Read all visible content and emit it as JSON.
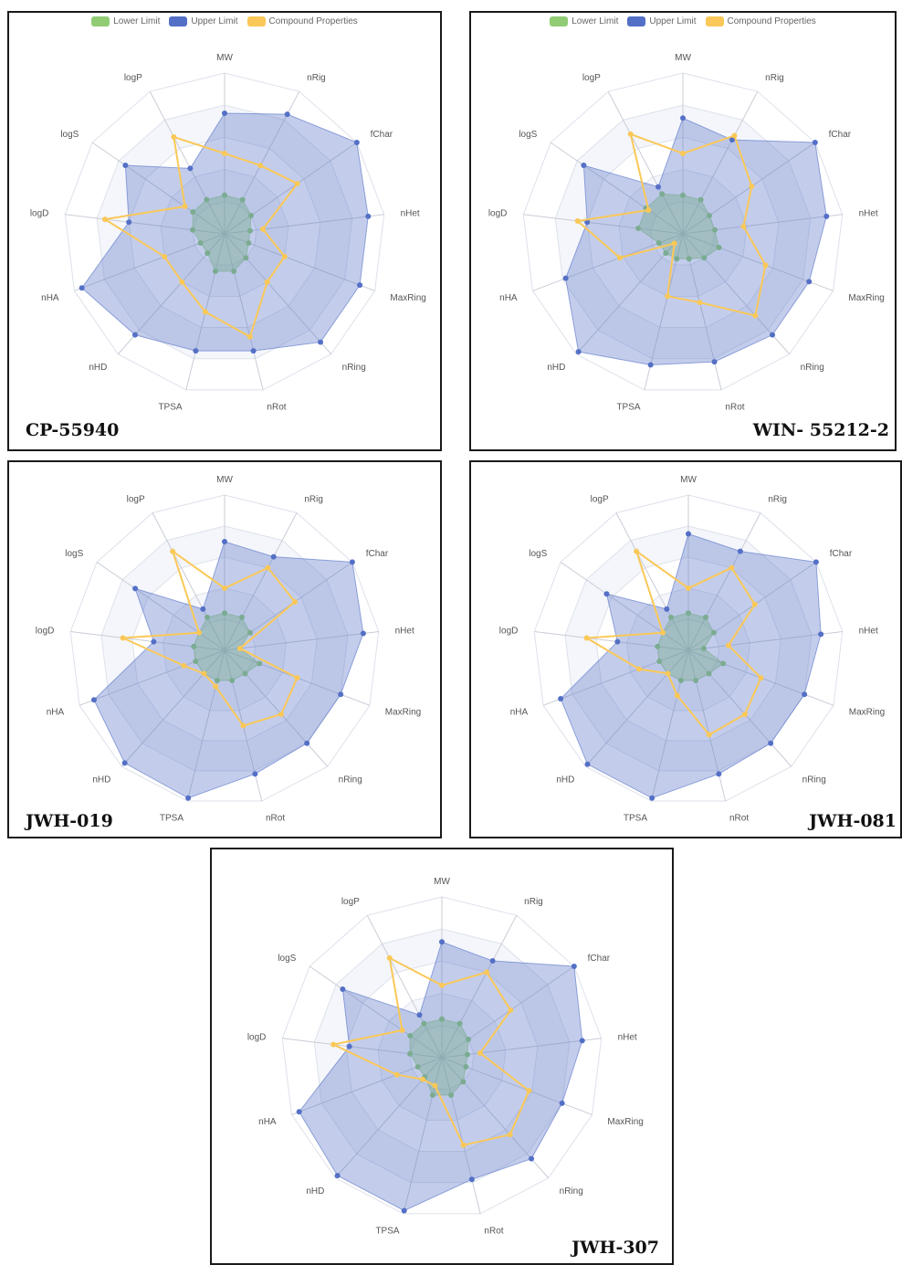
{
  "legend": {
    "items": [
      {
        "label": "Lower Limit",
        "color": "#91cc75"
      },
      {
        "label": "Upper Limit",
        "color": "#5470c6"
      },
      {
        "label": "Compound Properties",
        "color": "#fac858"
      }
    ]
  },
  "axes": [
    "MW",
    "nRig",
    "fChar",
    "nHet",
    "MaxRing",
    "nRing",
    "nRot",
    "TPSA",
    "nHD",
    "nHA",
    "logD",
    "logS",
    "logP"
  ],
  "scale": {
    "max": 1.0,
    "rings": 5
  },
  "chart_data": [
    {
      "type": "radar",
      "name": "CP-55940",
      "categories": [
        "MW",
        "nRig",
        "fChar",
        "nHet",
        "MaxRing",
        "nRing",
        "nRot",
        "TPSA",
        "nHD",
        "nHA",
        "logD",
        "logS",
        "logP"
      ],
      "series": [
        {
          "name": "Lower Limit",
          "values": [
            0.24,
            0.24,
            0.2,
            0.16,
            0.16,
            0.2,
            0.24,
            0.24,
            0.16,
            0.16,
            0.2,
            0.24,
            0.24
          ]
        },
        {
          "name": "Upper Limit",
          "values": [
            0.75,
            0.84,
            1.0,
            0.9,
            0.9,
            0.9,
            0.75,
            0.75,
            0.84,
            0.95,
            0.6,
            0.75,
            0.46
          ]
        },
        {
          "name": "Compound Properties",
          "values": [
            0.5,
            0.48,
            0.55,
            0.24,
            0.4,
            0.4,
            0.66,
            0.5,
            0.4,
            0.4,
            0.75,
            0.3,
            0.68
          ]
        }
      ]
    },
    {
      "type": "radar",
      "name": "WIN- 55212-2",
      "categories": [
        "MW",
        "nRig",
        "fChar",
        "nHet",
        "MaxRing",
        "nRing",
        "nRot",
        "TPSA",
        "nHD",
        "nHA",
        "logD",
        "logS",
        "logP"
      ],
      "series": [
        {
          "name": "Lower Limit",
          "values": [
            0.24,
            0.24,
            0.2,
            0.2,
            0.24,
            0.2,
            0.16,
            0.16,
            0.16,
            0.16,
            0.28,
            0.28,
            0.28
          ]
        },
        {
          "name": "Upper Limit",
          "values": [
            0.72,
            0.66,
            1.0,
            0.9,
            0.84,
            0.84,
            0.82,
            0.84,
            0.98,
            0.78,
            0.6,
            0.75,
            0.33
          ]
        },
        {
          "name": "Compound Properties",
          "values": [
            0.5,
            0.69,
            0.52,
            0.38,
            0.55,
            0.68,
            0.44,
            0.4,
            0.08,
            0.42,
            0.66,
            0.26,
            0.7
          ]
        }
      ]
    },
    {
      "type": "radar",
      "name": "JWH-019",
      "categories": [
        "MW",
        "nRig",
        "fChar",
        "nHet",
        "MaxRing",
        "nRing",
        "nRot",
        "TPSA",
        "nHD",
        "nHA",
        "logD",
        "logS",
        "logP"
      ],
      "series": [
        {
          "name": "Lower Limit",
          "values": [
            0.24,
            0.24,
            0.2,
            0.1,
            0.24,
            0.2,
            0.2,
            0.2,
            0.2,
            0.2,
            0.2,
            0.2,
            0.24
          ]
        },
        {
          "name": "Upper Limit",
          "values": [
            0.7,
            0.68,
            1.0,
            0.9,
            0.8,
            0.8,
            0.82,
            0.98,
            0.97,
            0.9,
            0.46,
            0.7,
            0.3
          ]
        },
        {
          "name": "Compound Properties",
          "values": [
            0.4,
            0.6,
            0.55,
            0.1,
            0.5,
            0.55,
            0.5,
            0.24,
            0.2,
            0.28,
            0.66,
            0.2,
            0.72
          ]
        }
      ]
    },
    {
      "type": "radar",
      "name": "JWH-081",
      "categories": [
        "MW",
        "nRig",
        "fChar",
        "nHet",
        "MaxRing",
        "nRing",
        "nRot",
        "TPSA",
        "nHD",
        "nHA",
        "logD",
        "logS",
        "logP"
      ],
      "series": [
        {
          "name": "Lower Limit",
          "values": [
            0.24,
            0.24,
            0.2,
            0.1,
            0.24,
            0.2,
            0.2,
            0.2,
            0.2,
            0.2,
            0.2,
            0.2,
            0.24
          ]
        },
        {
          "name": "Upper Limit",
          "values": [
            0.75,
            0.72,
            1.0,
            0.86,
            0.8,
            0.8,
            0.82,
            0.98,
            0.98,
            0.88,
            0.46,
            0.64,
            0.3
          ]
        },
        {
          "name": "Compound Properties",
          "values": [
            0.4,
            0.6,
            0.52,
            0.26,
            0.5,
            0.55,
            0.56,
            0.3,
            0.2,
            0.34,
            0.66,
            0.2,
            0.72
          ]
        }
      ]
    },
    {
      "type": "radar",
      "name": "JWH-307",
      "categories": [
        "MW",
        "nRig",
        "fChar",
        "nHet",
        "MaxRing",
        "nRing",
        "nRot",
        "TPSA",
        "nHD",
        "nHA",
        "logD",
        "logS",
        "logP"
      ],
      "series": [
        {
          "name": "Lower Limit",
          "values": [
            0.24,
            0.24,
            0.2,
            0.16,
            0.16,
            0.2,
            0.24,
            0.24,
            0.16,
            0.16,
            0.2,
            0.24,
            0.24
          ]
        },
        {
          "name": "Upper Limit",
          "values": [
            0.72,
            0.68,
            1.0,
            0.88,
            0.8,
            0.84,
            0.78,
            0.98,
            0.98,
            0.95,
            0.58,
            0.75,
            0.3
          ]
        },
        {
          "name": "Compound Properties",
          "values": [
            0.45,
            0.6,
            0.52,
            0.24,
            0.58,
            0.64,
            0.56,
            0.18,
            0.18,
            0.3,
            0.68,
            0.3,
            0.7
          ]
        }
      ]
    }
  ]
}
